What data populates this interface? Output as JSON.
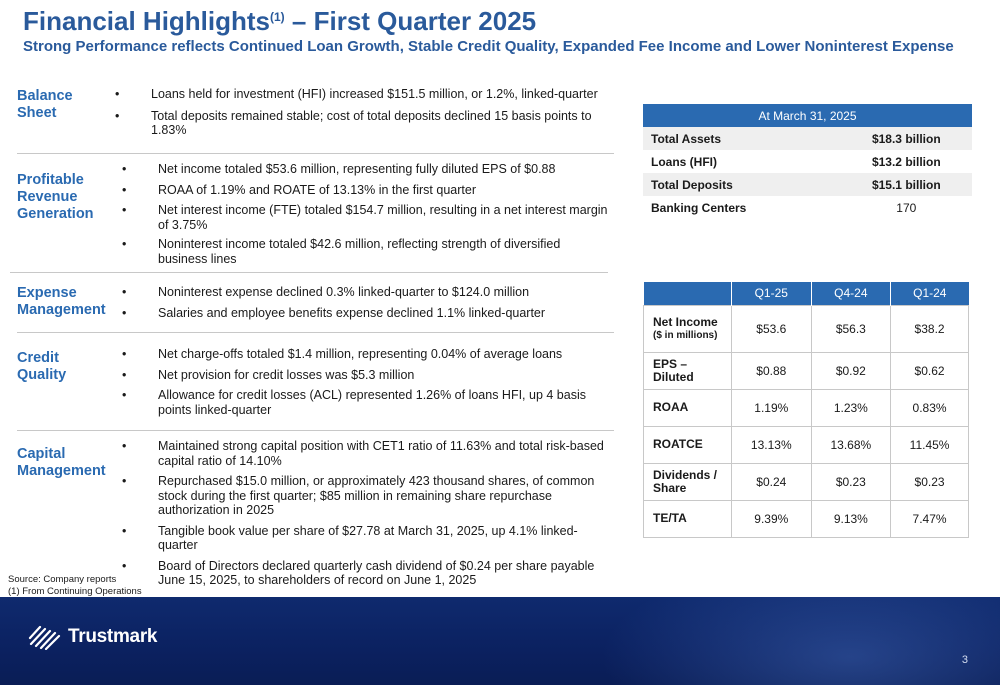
{
  "header": {
    "title": "Financial Highlights",
    "title_sup": "(1)",
    "title_rest": " – First Quarter 2025",
    "subtitle": "Strong Performance reflects Continued Loan Growth, Stable Credit Quality, Expanded Fee Income and Lower Noninterest Expense"
  },
  "sections": {
    "balance_sheet": {
      "label": [
        "Balance",
        "Sheet"
      ],
      "bullets": [
        "Loans held for investment (HFI) increased $151.5 million, or 1.2%, linked-quarter",
        "Total deposits remained stable; cost of total deposits declined 15 basis points to 1.83%"
      ]
    },
    "profitable_revenue": {
      "label": [
        "Profitable",
        "Revenue",
        "Generation"
      ],
      "bullets": [
        "Net income totaled $53.6 million, representing fully diluted EPS of $0.88",
        "ROAA of 1.19% and ROATE of 13.13% in the first quarter",
        "Net interest income (FTE) totaled $154.7 million, resulting in a net interest margin of 3.75%",
        "Noninterest income totaled $42.6 million, reflecting strength of diversified business lines"
      ]
    },
    "expense_management": {
      "label": [
        "Expense",
        "Management"
      ],
      "bullets": [
        "Noninterest expense declined 0.3% linked-quarter to $124.0 million",
        "Salaries and employee benefits expense declined 1.1% linked-quarter"
      ]
    },
    "credit_quality": {
      "label": [
        "Credit",
        "Quality"
      ],
      "bullets": [
        "Net charge-offs totaled $1.4 million, representing 0.04% of average loans",
        "Net provision for credit losses was $5.3 million",
        "Allowance for credit losses (ACL) represented 1.26% of loans HFI, up 4 basis points linked-quarter"
      ]
    },
    "capital_management": {
      "label": [
        "Capital",
        "Management"
      ],
      "bullets": [
        "Maintained strong capital position with CET1 ratio of 11.63% and total risk-based capital ratio of 14.10%",
        "Repurchased $15.0 million, or approximately 423 thousand shares, of common stock during the first quarter; $85 million in remaining share repurchase authorization in 2025",
        "Tangible book value per share of $27.78 at March 31, 2025, up 4.1% linked-quarter",
        "Board of Directors declared quarterly cash dividend of $0.24 per share payable June 15, 2025, to shareholders of record on June 1, 2025"
      ]
    }
  },
  "snapshot_table": {
    "header": "At March 31, 2025",
    "rows": [
      {
        "label": "Total Assets",
        "value": "$18.3 billion"
      },
      {
        "label": "Loans (HFI)",
        "value": "$13.2 billion"
      },
      {
        "label": "Total Deposits",
        "value": "$15.1 billion"
      },
      {
        "label": "Banking Centers",
        "value": "170"
      }
    ]
  },
  "metrics_table": {
    "columns": [
      "",
      "Q1-25",
      "Q4-24",
      "Q1-24"
    ],
    "rows": [
      {
        "label": "Net Income",
        "sublabel": "($ in millions)",
        "values": [
          "$53.6",
          "$56.3",
          "$38.2"
        ]
      },
      {
        "label": "EPS – Diluted",
        "sublabel": "",
        "values": [
          "$0.88",
          "$0.92",
          "$0.62"
        ]
      },
      {
        "label": "ROAA",
        "sublabel": "",
        "values": [
          "1.19%",
          "1.23%",
          "0.83%"
        ]
      },
      {
        "label": "ROATCE",
        "sublabel": "",
        "values": [
          "13.13%",
          "13.68%",
          "11.45%"
        ]
      },
      {
        "label": "Dividends / Share",
        "sublabel": "",
        "values": [
          "$0.24",
          "$0.23",
          "$0.23"
        ]
      },
      {
        "label": "TE/TA",
        "sublabel": "",
        "values": [
          "9.39%",
          "9.13%",
          "7.47%"
        ]
      }
    ]
  },
  "footnotes": {
    "source": "Source: Company reports",
    "note1": "(1) From Continuing Operations"
  },
  "footer": {
    "logo_text": "Trustmark",
    "page_number": "3"
  },
  "colors": {
    "brand_blue": "#2a6ab1",
    "title_blue": "#2a5a9b",
    "footer_navy": "#0b2160"
  }
}
